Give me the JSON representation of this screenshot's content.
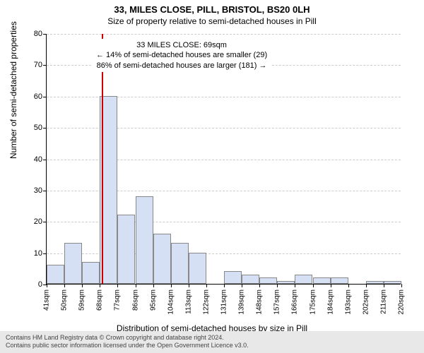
{
  "title_main": "33, MILES CLOSE, PILL, BRISTOL, BS20 0LH",
  "title_sub": "Size of property relative to semi-detached houses in Pill",
  "ylabel": "Number of semi-detached properties",
  "xlabel": "Distribution of semi-detached houses by size in Pill",
  "annotation": {
    "line1": "33 MILES CLOSE: 69sqm",
    "line2": "← 14% of semi-detached houses are smaller (29)",
    "line3": "86% of semi-detached houses are larger (181) →"
  },
  "footer_line1": "Contains HM Land Registry data © Crown copyright and database right 2024.",
  "footer_line2": "Contains public sector information licensed under the Open Government Licence v3.0.",
  "chart": {
    "type": "histogram",
    "bar_color": "#d6e0f5",
    "bar_border": "#888888",
    "background_color": "#ffffff",
    "grid_color": "#cccccc",
    "refline_color": "#cc0000",
    "refline_x": 69,
    "axis_fontsize": 11,
    "label_fontsize": 12,
    "title_fontsize": 13,
    "x_start": 41,
    "x_step": 9,
    "bin_count": 20,
    "x_ticks": [
      "41sqm",
      "50sqm",
      "59sqm",
      "68sqm",
      "77sqm",
      "86sqm",
      "95sqm",
      "104sqm",
      "113sqm",
      "122sqm",
      "131sqm",
      "139sqm",
      "148sqm",
      "157sqm",
      "166sqm",
      "175sqm",
      "184sqm",
      "193sqm",
      "202sqm",
      "211sqm",
      "220sqm"
    ],
    "ylim": [
      0,
      80
    ],
    "ytick_step": 10,
    "y_ticks": [
      0,
      10,
      20,
      30,
      40,
      50,
      60,
      70,
      80
    ],
    "values": [
      6,
      13,
      7,
      60,
      22,
      28,
      16,
      13,
      10,
      0,
      4,
      3,
      2,
      1,
      3,
      2,
      2,
      0,
      1,
      1
    ]
  }
}
